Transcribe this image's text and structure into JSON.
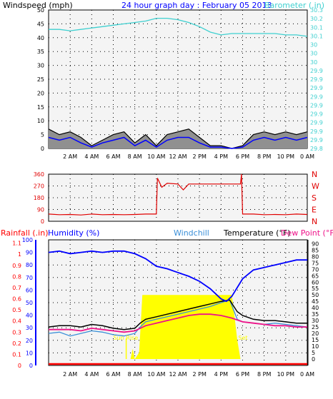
{
  "header": {
    "title": "24 hour graph day : February 05 2013",
    "wind_label": "Windspeed (mph)",
    "baro_label": "Barometer (.in)"
  },
  "colors": {
    "background": "#f4f4f4",
    "wind_gust": "#000000",
    "wind_avg": "#0000ff",
    "wind_fill": "#909090",
    "barometer": "#3fd0d0",
    "direction": "#e00000",
    "humidity": "#0000ff",
    "windchill": "#3a8fd8",
    "temperature": "#000000",
    "dewpoint": "#ee1188",
    "solar": "#ffff00",
    "rain": "#ff0000",
    "title": "#0000ff"
  },
  "time_ticks": [
    "2 AM",
    "4 AM",
    "6 AM",
    "8 AM",
    "10 AM",
    "12 AM",
    "2 PM",
    "4 PM",
    "6 PM",
    "8 PM",
    "10 PM",
    "0 AM"
  ],
  "chart_data": [
    {
      "type": "line",
      "title": "24 hour graph day : February 05 2013",
      "ylabel": "Windspeed (mph)",
      "y2label": "Barometer (.in)",
      "xlim": [
        0,
        24
      ],
      "ylim": [
        0,
        50
      ],
      "y2lim": [
        29.8,
        30.3
      ],
      "yticks": [
        "0",
        "5",
        "10",
        "15",
        "20",
        "25",
        "30",
        "35",
        "40",
        "45",
        "50"
      ],
      "y2ticks": [
        "29.8",
        "29.9",
        "29.9",
        "29.9",
        "29.9",
        "29.9",
        "29.9",
        "29.9",
        "29.9",
        "29.9",
        "30",
        "30",
        "30",
        "30.1",
        "30.1",
        "30.2",
        "30.3"
      ],
      "grid": true,
      "series": [
        {
          "name": "Barometer (.in)",
          "axis": "right",
          "x": [
            0,
            1,
            2,
            3,
            4,
            5,
            6,
            7,
            8,
            9,
            10,
            11,
            12,
            13,
            14,
            15,
            16,
            17,
            18,
            19,
            20,
            21,
            22,
            23,
            24
          ],
          "values": [
            30.23,
            30.23,
            30.225,
            30.23,
            30.235,
            30.24,
            30.245,
            30.25,
            30.255,
            30.26,
            30.27,
            30.27,
            30.265,
            30.255,
            30.24,
            30.22,
            30.21,
            30.215,
            30.215,
            30.215,
            30.215,
            30.215,
            30.21,
            30.21,
            30.205
          ]
        },
        {
          "name": "Gust",
          "x": [
            0,
            1,
            2,
            3,
            4,
            5,
            6,
            7,
            8,
            9,
            10,
            11,
            12,
            13,
            14,
            15,
            16,
            17,
            18,
            19,
            20,
            21,
            22,
            23,
            24
          ],
          "values": [
            7,
            5,
            6,
            4,
            1,
            3,
            5,
            6,
            2,
            5,
            1,
            5,
            6,
            7,
            4,
            1,
            1,
            0,
            1,
            5,
            6,
            5,
            6,
            5,
            6
          ]
        },
        {
          "name": "Average",
          "x": [
            0,
            1,
            2,
            3,
            4,
            5,
            6,
            7,
            8,
            9,
            10,
            11,
            12,
            13,
            14,
            15,
            16,
            17,
            18,
            19,
            20,
            21,
            22,
            23,
            24
          ],
          "values": [
            4,
            3,
            4,
            2,
            0.5,
            2,
            3,
            4,
            1,
            3,
            0.5,
            3,
            4,
            4,
            2,
            0.5,
            0.5,
            0,
            0.5,
            3,
            4,
            3,
            4,
            3,
            4
          ]
        }
      ]
    },
    {
      "type": "line",
      "ylabel": "",
      "xlim": [
        0,
        24
      ],
      "ylim": [
        0,
        360
      ],
      "yticks": [
        "0",
        "90",
        "180",
        "270",
        "360"
      ],
      "y2ticks": [
        "N",
        "E",
        "S",
        "W",
        "N"
      ],
      "grid": true,
      "series": [
        {
          "name": "Wind direction",
          "x": [
            0,
            1,
            2,
            3,
            4,
            5,
            6,
            7,
            8,
            9,
            10,
            10.1,
            10.5,
            11,
            12,
            12.5,
            13,
            14,
            15,
            16,
            17,
            17.8,
            17.9,
            18,
            19,
            20,
            21,
            22,
            23,
            24
          ],
          "values": [
            55,
            50,
            52,
            48,
            55,
            50,
            52,
            50,
            52,
            55,
            55,
            330,
            260,
            290,
            285,
            240,
            285,
            285,
            285,
            285,
            285,
            285,
            360,
            55,
            55,
            50,
            52,
            50,
            55,
            52
          ]
        }
      ]
    },
    {
      "type": "line",
      "xlabel": "",
      "xlim": [
        0,
        24
      ],
      "y_rain_label": "Rainfall (.in)",
      "y_hum_label": "Humidity (%)",
      "windchill_label": "Windchill",
      "temp_label": "Temperature (°F)",
      "dew_label": "Dew Point (°F)",
      "rain_ticks": [
        "0",
        "0.1",
        "0.2",
        "0.3",
        "0.4",
        "0.5",
        "0.6",
        "0.7",
        "0.8",
        "0.9",
        "1",
        "1.1"
      ],
      "humidity_ticks": [
        "0",
        "10",
        "20",
        "30",
        "40",
        "50",
        "60",
        "70",
        "80",
        "90",
        "100"
      ],
      "temp_ticks": [
        "0",
        "5",
        "10",
        "15",
        "20",
        "25",
        "30",
        "35",
        "40",
        "45",
        "50",
        "55",
        "60",
        "65",
        "70",
        "75",
        "80",
        "85",
        "90"
      ],
      "temp_lim": [
        -5,
        93
      ],
      "humidity_lim": [
        0,
        100
      ],
      "annotations": [
        "Sun Rise",
        "Set"
      ],
      "grid": true,
      "series": [
        {
          "name": "Humidity (%)",
          "axis": "humidity",
          "x": [
            0,
            1,
            2,
            3,
            4,
            5,
            6,
            7,
            8,
            9,
            10,
            11,
            12,
            13,
            14,
            15,
            16,
            16.5,
            17,
            18,
            19,
            20,
            21,
            22,
            23,
            24
          ],
          "values": [
            90,
            91,
            89,
            90,
            91,
            90,
            91,
            91,
            89,
            85,
            79,
            77,
            74,
            71,
            67,
            61,
            53,
            51,
            55,
            69,
            76,
            78,
            80,
            82,
            84,
            84
          ]
        },
        {
          "name": "Temperature (°F)",
          "x": [
            0,
            1,
            2,
            3,
            4,
            5,
            6,
            7,
            8,
            8.5,
            9,
            10,
            11,
            12,
            13,
            14,
            15,
            16,
            16.8,
            17.5,
            18,
            19,
            20,
            21,
            22,
            23,
            24
          ],
          "values": [
            25,
            26,
            26,
            25,
            27,
            26,
            24,
            23,
            24,
            28,
            31,
            33,
            35,
            37,
            39,
            41,
            43,
            45,
            46,
            37,
            34,
            31,
            30,
            30,
            29,
            28,
            28
          ]
        },
        {
          "name": "Windchill",
          "x": [
            0,
            1,
            2,
            3,
            4,
            5,
            6,
            7,
            8,
            8.5,
            9,
            10,
            11,
            12,
            13,
            14,
            15,
            16,
            16.8,
            17.5,
            18,
            19,
            20,
            21,
            22,
            23,
            24
          ],
          "values": [
            20,
            21,
            18,
            20,
            22,
            21,
            19,
            18,
            20,
            25,
            29,
            31,
            33,
            35,
            37,
            39,
            41,
            44,
            46,
            31,
            29,
            28,
            27,
            28,
            27,
            26,
            25
          ]
        },
        {
          "name": "Dew Point (°F)",
          "x": [
            0,
            1,
            2,
            3,
            4,
            5,
            6,
            7,
            8,
            9,
            10,
            11,
            12,
            13,
            14,
            15,
            16,
            17,
            18,
            19,
            20,
            21,
            22,
            23,
            24
          ],
          "values": [
            23,
            23,
            23,
            22,
            24,
            23,
            22,
            21,
            22,
            26,
            28,
            30,
            32,
            34,
            35,
            35,
            34,
            32,
            29,
            28,
            27,
            26,
            26,
            25,
            25
          ]
        },
        {
          "name": "Rainfall (.in)",
          "axis": "rain",
          "x": [
            0,
            24
          ],
          "values": [
            0,
            0
          ]
        },
        {
          "name": "Solar",
          "axis": "temp",
          "x": [
            7.6,
            7.8,
            8.0,
            8.4,
            8.7,
            9.0,
            10,
            12,
            14,
            16,
            17,
            17.3,
            17.5,
            17.8
          ],
          "values": [
            0,
            8,
            0,
            5,
            50,
            50,
            50,
            50,
            50,
            50,
            50,
            30,
            15,
            0
          ]
        }
      ]
    }
  ]
}
